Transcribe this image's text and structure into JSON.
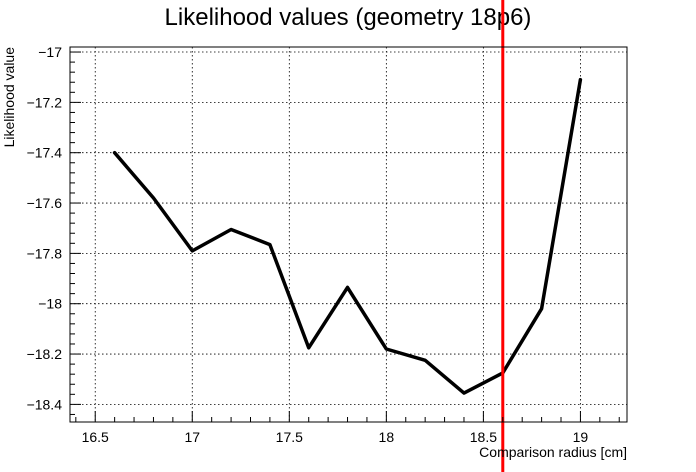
{
  "chart_data": {
    "type": "line",
    "title": "Likelihood values (geometry 18p6)",
    "xlabel": "Comparison radius [cm]",
    "ylabel": "Likelihood value",
    "xlim": [
      16.37,
      19.24
    ],
    "ylim": [
      -18.47,
      -16.98
    ],
    "xticks": [
      16.5,
      17,
      17.5,
      18,
      18.5,
      19
    ],
    "xtick_labels": [
      "16.5",
      "17",
      "17.5",
      "18",
      "18.5",
      "19"
    ],
    "yticks": [
      -17,
      -17.2,
      -17.4,
      -17.6,
      -17.8,
      -18,
      -18.2,
      -18.4
    ],
    "ytick_labels": [
      "−17",
      "−17.2",
      "−17.4",
      "−17.6",
      "−17.8",
      "−18",
      "−18.2",
      "−18.4"
    ],
    "grid": true,
    "series": [
      {
        "color": "#000000",
        "x": [
          16.6,
          16.8,
          17.0,
          17.2,
          17.4,
          17.6,
          17.8,
          18.0,
          18.2,
          18.4,
          18.6,
          18.8,
          19.0
        ],
        "values": [
          -17.4,
          -17.58,
          -17.79,
          -17.705,
          -17.765,
          -18.175,
          -17.935,
          -18.18,
          -18.225,
          -18.355,
          -18.275,
          -18.02,
          -17.11
        ]
      }
    ],
    "reference_lines": [
      {
        "orientation": "vertical",
        "x": 18.6,
        "color": "#ff0000"
      }
    ]
  }
}
